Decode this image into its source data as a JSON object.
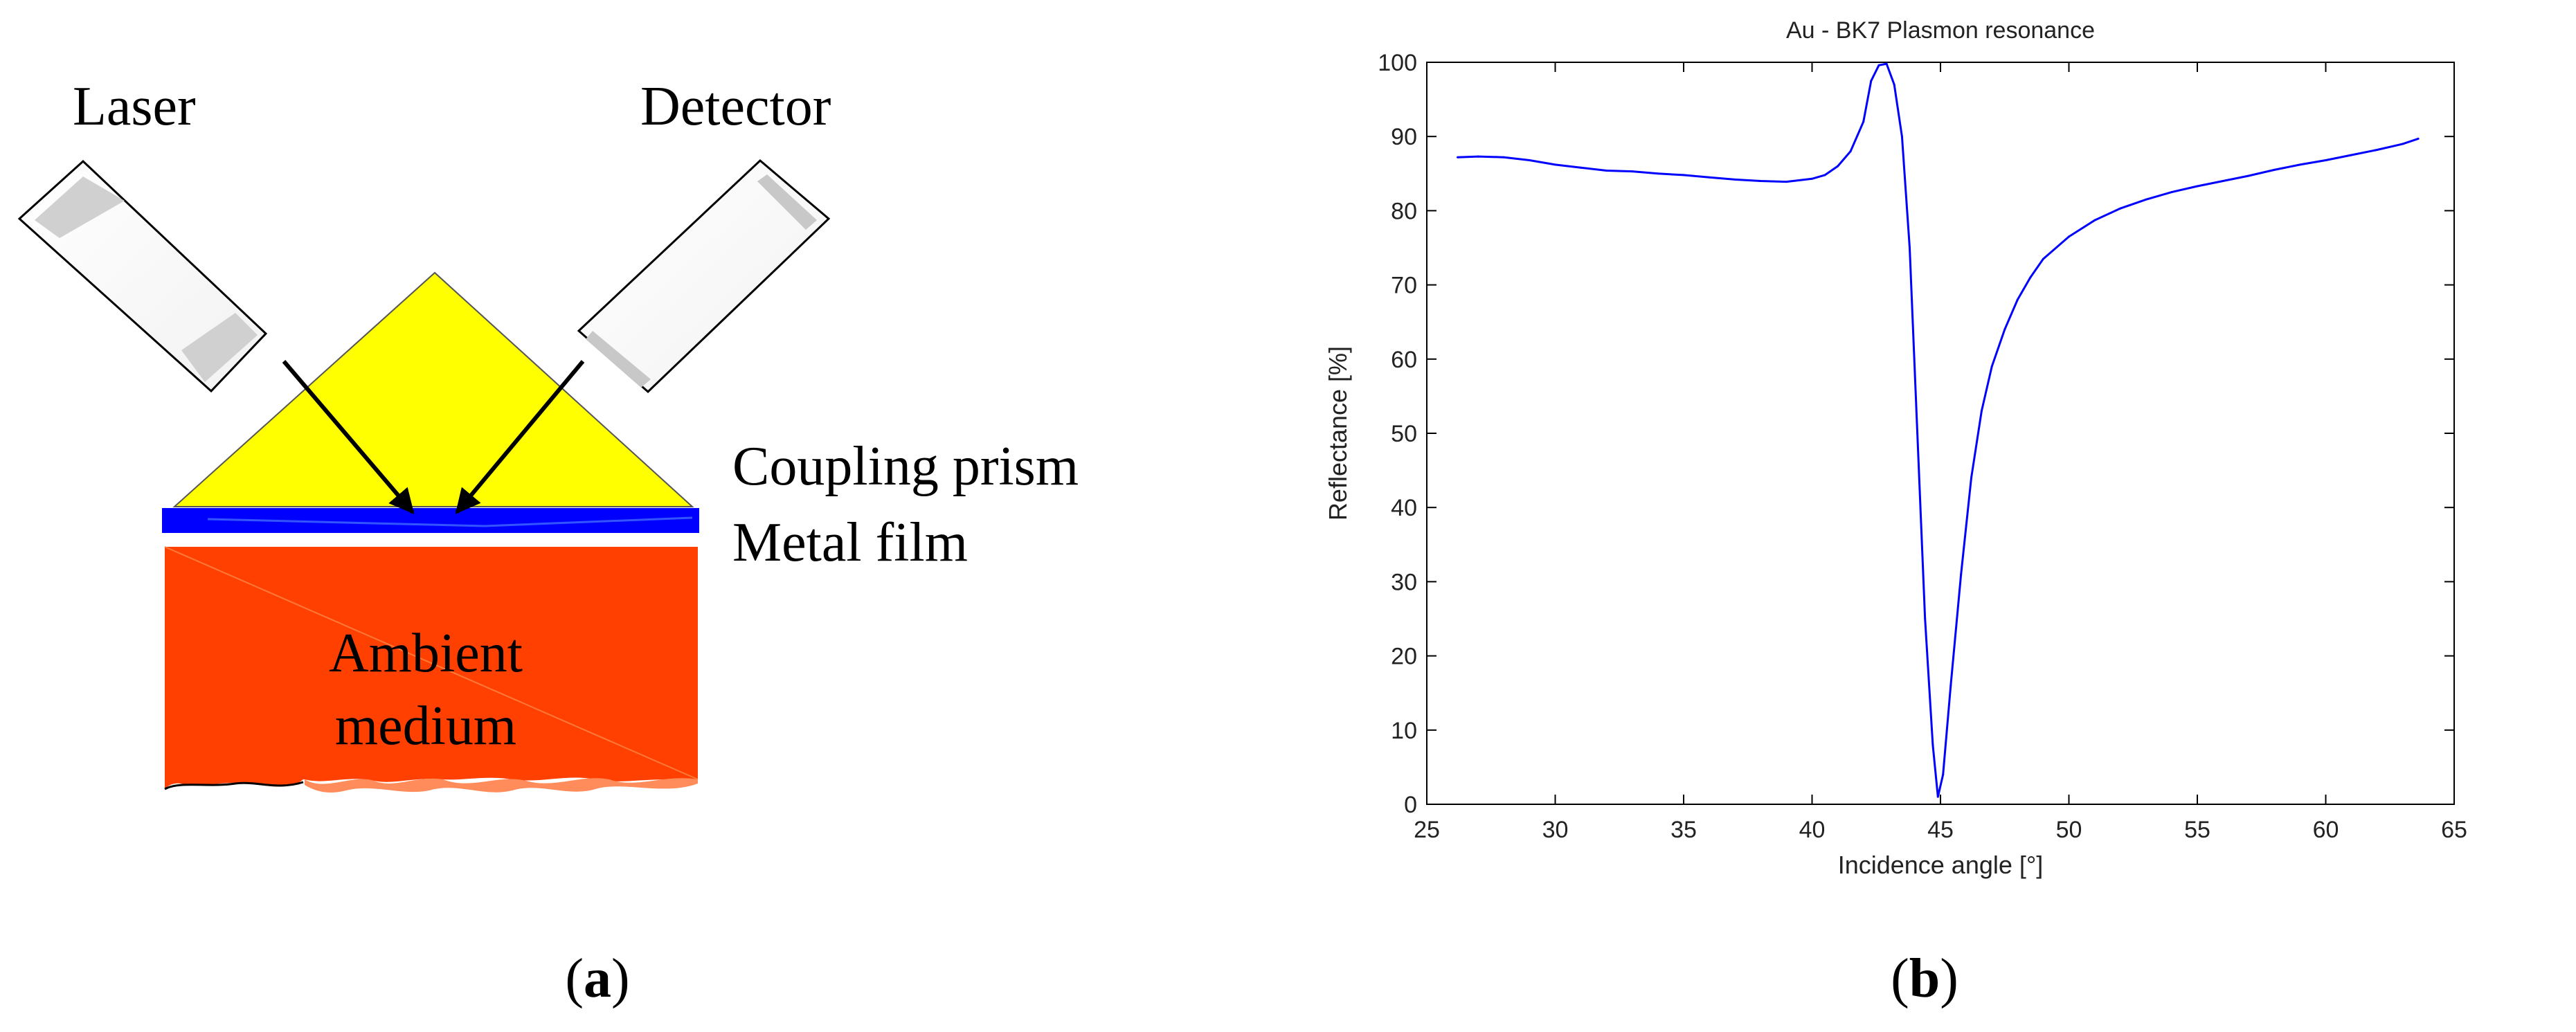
{
  "figure": {
    "panel_a": {
      "label_open": "(",
      "label_letter": "a",
      "label_close": ")",
      "laser_label": "Laser",
      "detector_label": "Detector",
      "prism_label": "Coupling prism",
      "film_label": "Metal film",
      "medium_line1": "Ambient",
      "medium_line2": "medium",
      "colors": {
        "prism": "#ffff00",
        "film": "#0000ff",
        "medium": "#ff4000",
        "medium_edge": "#ff8c5a"
      }
    },
    "panel_b": {
      "label_open": "(",
      "label_letter": "b",
      "label_close": ")"
    }
  },
  "chart_data": {
    "type": "line",
    "title": "Au - BK7 Plasmon resonance",
    "xlabel": "Incidence angle [°]",
    "ylabel": "Reflectance [%]",
    "xlim": [
      25,
      65
    ],
    "ylim": [
      0,
      100
    ],
    "xticks": [
      25,
      30,
      35,
      40,
      45,
      50,
      55,
      60,
      65
    ],
    "yticks": [
      0,
      10,
      20,
      30,
      40,
      50,
      60,
      70,
      80,
      90,
      100
    ],
    "grid": false,
    "line_color": "#0000ff",
    "series": [
      {
        "x": [
          26.2,
          27,
          28,
          29,
          30,
          31,
          32,
          33,
          34,
          35,
          36,
          37,
          38,
          39,
          40,
          40.5,
          41,
          41.5,
          42,
          42.3,
          42.6,
          42.9,
          43.2,
          43.5,
          43.8,
          44.1,
          44.4,
          44.7,
          44.9,
          45.1,
          45.4,
          45.8,
          46.2,
          46.6,
          47,
          47.5,
          48,
          48.5,
          49,
          50,
          51,
          52,
          53,
          54,
          55,
          56,
          57,
          58,
          59,
          60,
          61,
          62,
          63,
          63.6
        ],
        "y": [
          87.2,
          87.3,
          87.2,
          86.8,
          86.2,
          85.8,
          85.4,
          85.3,
          85.0,
          84.8,
          84.5,
          84.2,
          84.0,
          83.9,
          84.3,
          84.8,
          86.0,
          88.0,
          92.0,
          97.5,
          99.6,
          99.8,
          97.0,
          90.0,
          75.0,
          50.0,
          25.0,
          8.0,
          1.0,
          4.0,
          16.0,
          31.0,
          44.0,
          53.0,
          59.0,
          64.0,
          68.0,
          71.0,
          73.5,
          76.5,
          78.7,
          80.3,
          81.5,
          82.5,
          83.3,
          84.0,
          84.7,
          85.5,
          86.2,
          86.8,
          87.5,
          88.2,
          89.0,
          89.7
        ]
      }
    ]
  }
}
